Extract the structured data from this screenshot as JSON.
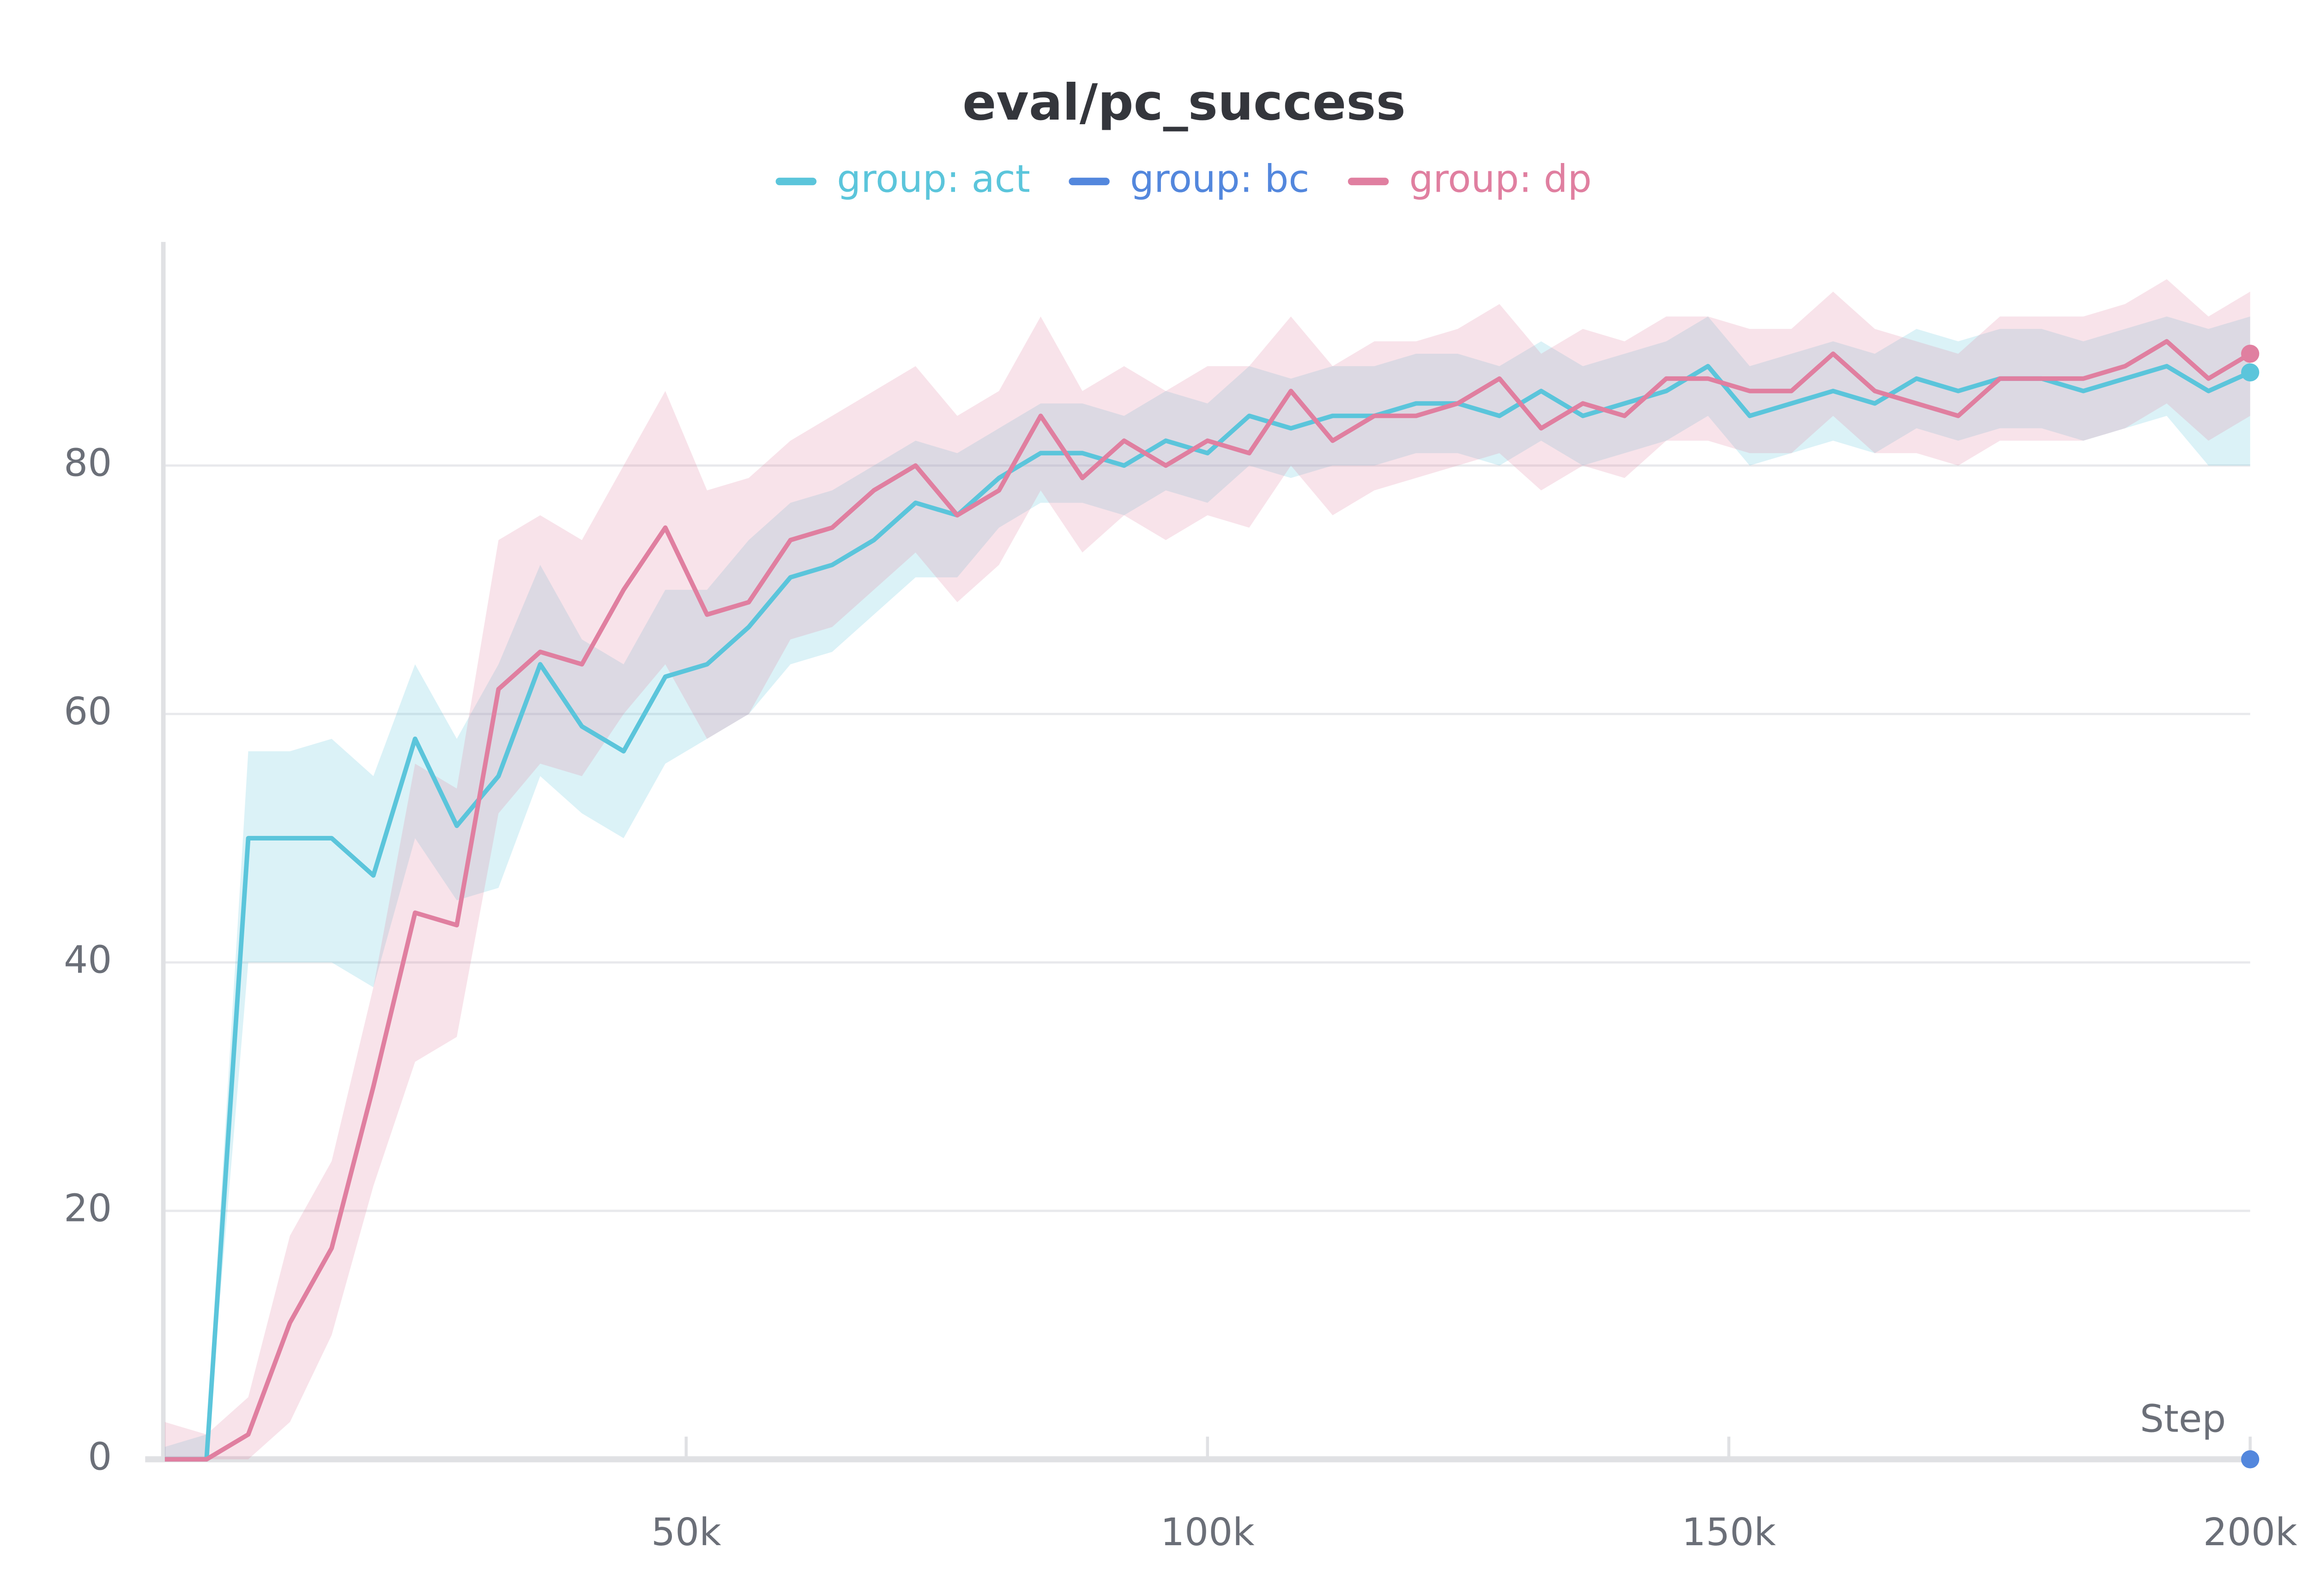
{
  "chart_data": {
    "type": "line",
    "title": "eval/pc_success",
    "x_label": "Step",
    "x": [
      0,
      4000,
      8000,
      12000,
      16000,
      20000,
      24000,
      28000,
      32000,
      36000,
      40000,
      44000,
      48000,
      52000,
      56000,
      60000,
      64000,
      68000,
      72000,
      76000,
      80000,
      84000,
      88000,
      92000,
      96000,
      100000,
      104000,
      108000,
      112000,
      116000,
      120000,
      124000,
      128000,
      132000,
      136000,
      140000,
      144000,
      148000,
      152000,
      156000,
      160000,
      164000,
      168000,
      172000,
      176000,
      180000,
      184000,
      188000,
      192000,
      196000,
      200000
    ],
    "series": [
      {
        "name": "group: act",
        "color": "#5bc5db",
        "values": [
          0,
          0,
          50,
          50,
          50,
          47,
          58,
          51,
          55,
          64,
          59,
          57,
          63,
          64,
          67,
          71,
          72,
          74,
          77,
          76,
          79,
          81,
          81,
          80,
          82,
          81,
          84,
          83,
          84,
          84,
          85,
          85,
          84,
          86,
          84,
          85,
          86,
          88,
          84,
          85,
          86,
          85,
          87,
          86,
          87,
          87,
          86,
          87,
          88,
          86,
          87.5
        ],
        "lower": [
          0,
          0,
          40,
          40,
          40,
          38,
          50,
          45,
          46,
          55,
          52,
          50,
          56,
          58,
          60,
          64,
          65,
          68,
          71,
          71,
          75,
          77,
          77,
          76,
          78,
          77,
          80,
          79,
          80,
          80,
          81,
          81,
          80,
          82,
          80,
          81,
          82,
          84,
          80,
          81,
          82,
          81,
          83,
          82,
          83,
          83,
          82,
          83,
          84,
          80,
          80
        ],
        "upper": [
          1,
          2,
          57,
          57,
          58,
          55,
          64,
          58,
          64,
          72,
          66,
          64,
          70,
          70,
          74,
          77,
          78,
          80,
          82,
          81,
          83,
          85,
          85,
          84,
          86,
          85,
          88,
          87,
          88,
          88,
          89,
          89,
          88,
          90,
          88,
          89,
          90,
          92,
          88,
          89,
          90,
          89,
          91,
          90,
          91,
          91,
          90,
          91,
          92,
          91,
          92
        ]
      },
      {
        "name": "group: bc",
        "color": "#5387dd",
        "x": [
          200000
        ],
        "values": [
          0
        ]
      },
      {
        "name": "group: dp",
        "color": "#e07fa0",
        "values": [
          0,
          0,
          2,
          11,
          17,
          30,
          44,
          43,
          62,
          65,
          64,
          70,
          75,
          68,
          69,
          74,
          75,
          78,
          80,
          76,
          78,
          84,
          79,
          82,
          80,
          82,
          81,
          86,
          82,
          84,
          84,
          85,
          87,
          83,
          85,
          84,
          87,
          87,
          86,
          86,
          89,
          86,
          85,
          84,
          87,
          87,
          87,
          88,
          90,
          87,
          89
        ],
        "lower": [
          0,
          0,
          0,
          3,
          10,
          22,
          32,
          34,
          52,
          56,
          55,
          60,
          64,
          58,
          60,
          66,
          67,
          70,
          73,
          69,
          72,
          78,
          73,
          76,
          74,
          76,
          75,
          80,
          76,
          78,
          79,
          80,
          81,
          78,
          80,
          79,
          82,
          82,
          81,
          81,
          84,
          81,
          81,
          80,
          82,
          82,
          82,
          83,
          85,
          82,
          84
        ],
        "upper": [
          3,
          2,
          5,
          18,
          24,
          38,
          56,
          54,
          74,
          76,
          74,
          80,
          86,
          78,
          79,
          82,
          84,
          86,
          88,
          84,
          86,
          92,
          86,
          88,
          86,
          88,
          88,
          92,
          88,
          90,
          90,
          91,
          93,
          89,
          91,
          90,
          92,
          92,
          91,
          91,
          94,
          91,
          90,
          89,
          92,
          92,
          92,
          93,
          95,
          92,
          94
        ]
      }
    ],
    "xlim": [
      0,
      200000
    ],
    "ylim": [
      0,
      98
    ],
    "xticks": [
      {
        "value": 50000,
        "label": "50k"
      },
      {
        "value": 100000,
        "label": "100k"
      },
      {
        "value": 150000,
        "label": "150k"
      },
      {
        "value": 200000,
        "label": "200k"
      }
    ],
    "yticks": [
      0,
      20,
      40,
      60,
      80
    ],
    "grid": true
  }
}
